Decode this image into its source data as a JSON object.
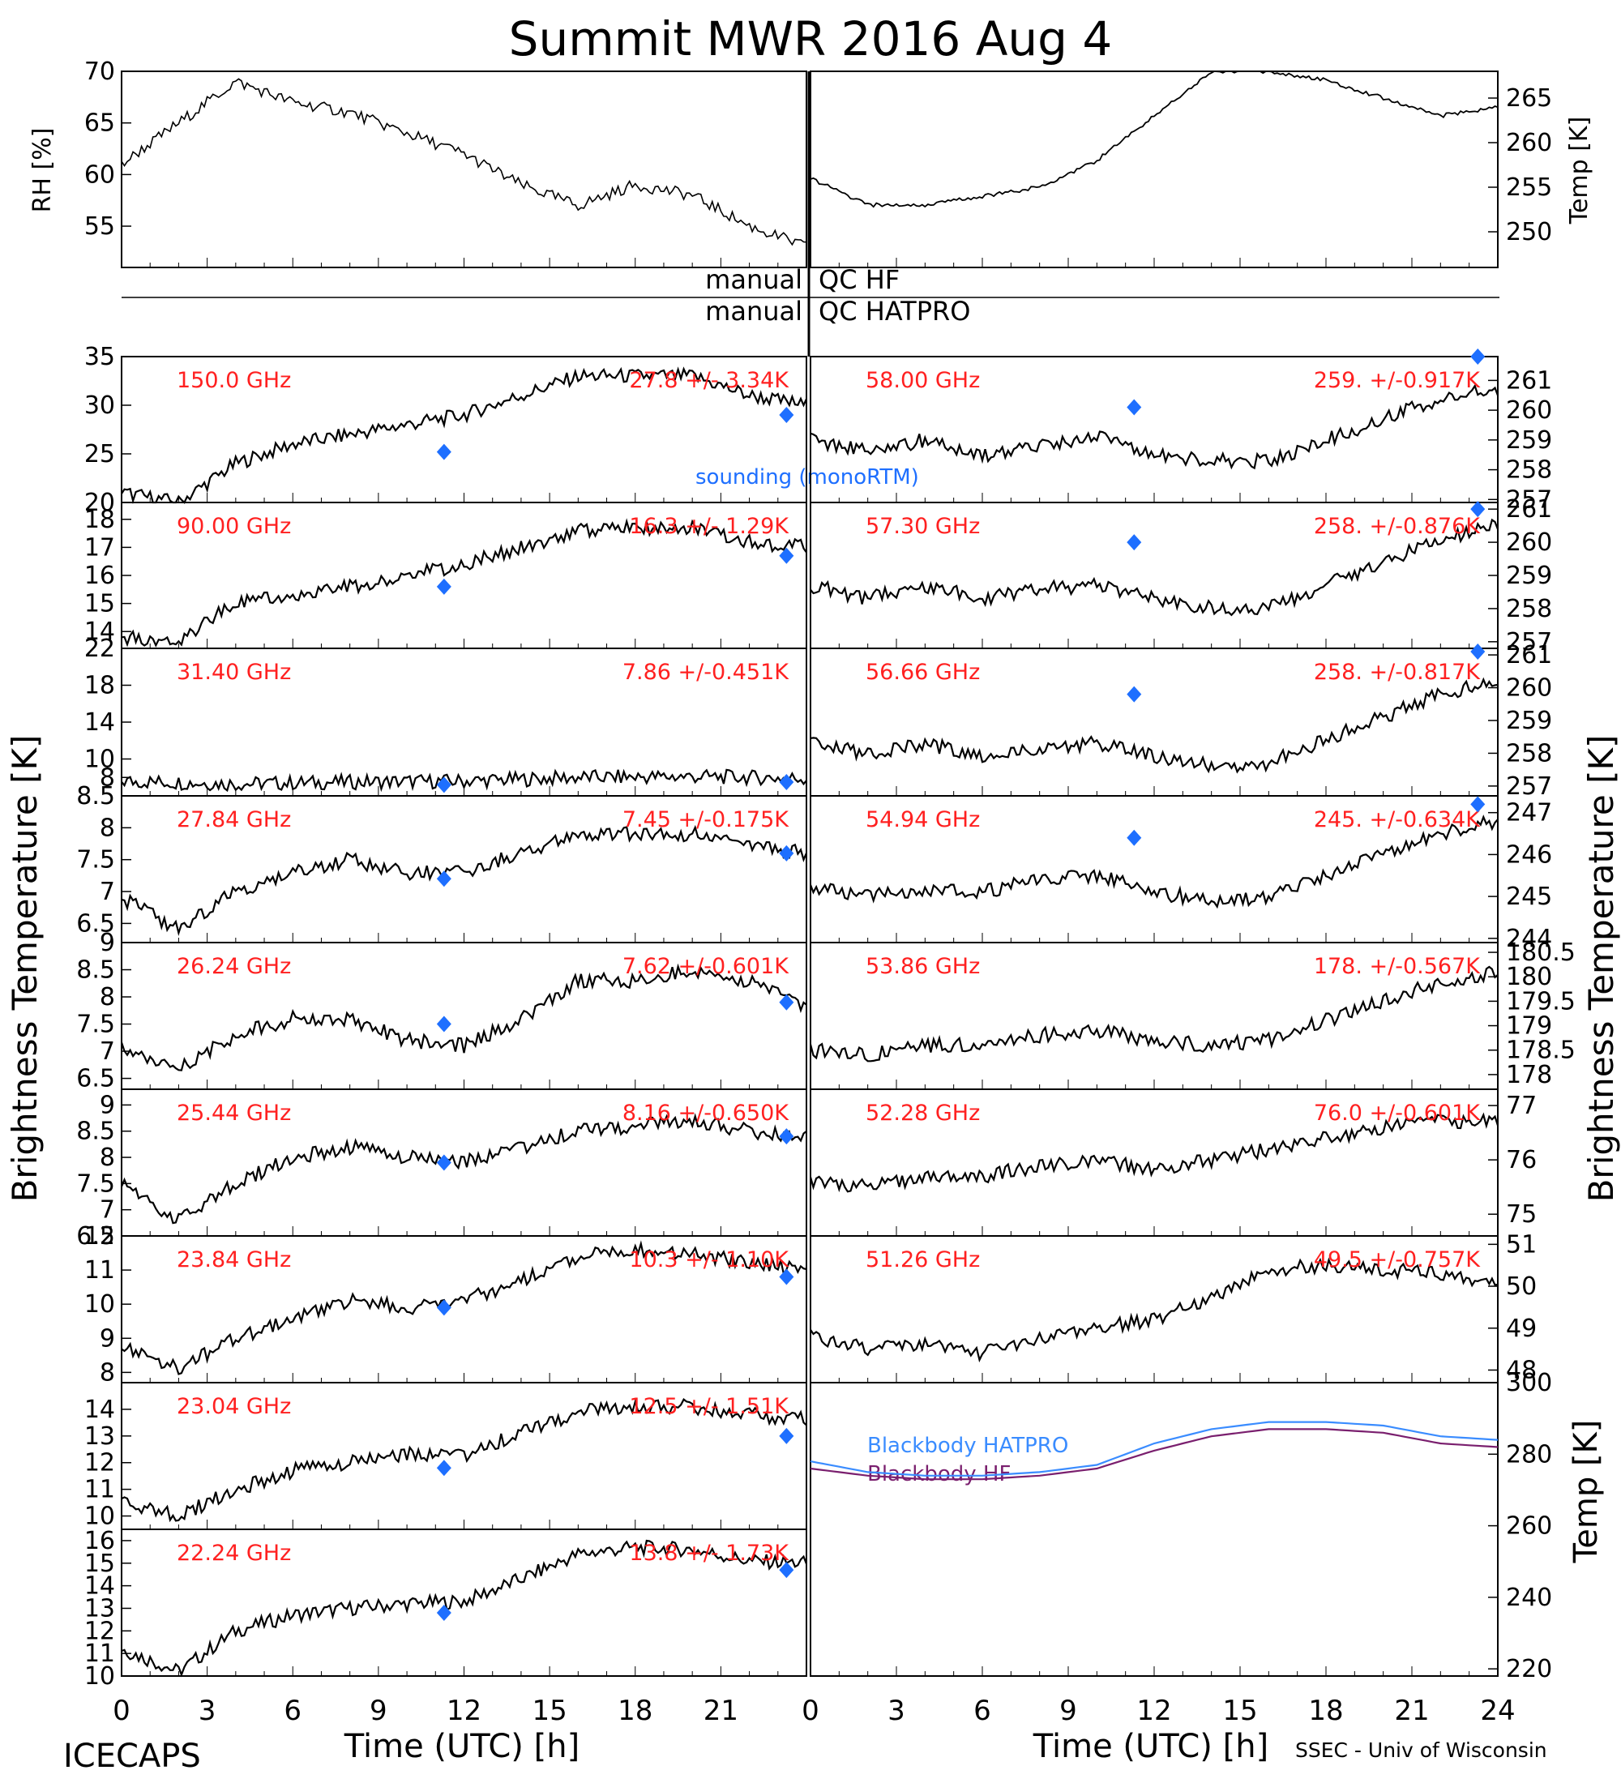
{
  "figure": {
    "title": "Summit MWR 2016 Aug  4",
    "bottom_left_label": "ICECAPS",
    "bottom_right_label": "SSEC - Univ of Wisconsin",
    "xlabel": "Time (UTC) [h]",
    "left_ylabel": "Brightness Temperature [K]",
    "right_ylabel": "Brightness Temperature [K]",
    "qc_hf": "QC HF",
    "qc_hatpro": "QC HATPRO",
    "qc_manual": "manual",
    "sounding_label": "sounding (monoRTM)",
    "colors": {
      "series": "#000000",
      "annotation": "#ff2020",
      "sounding": "#1e6fff",
      "bb_hatpro": "#3a8cff",
      "bb_hf": "#7a1f6e"
    }
  },
  "chart_data": [
    {
      "id": "rh",
      "type": "line",
      "ylabel": "RH [%]",
      "ylim": [
        51,
        70
      ],
      "yticks": [
        55,
        60,
        65,
        70
      ],
      "xlim": [
        0,
        12
      ],
      "x": [
        0,
        1,
        2,
        3,
        4,
        5,
        6,
        7,
        8,
        9,
        10,
        11,
        12
      ],
      "values": [
        61,
        65,
        69,
        67,
        66,
        64,
        62,
        59,
        57,
        59,
        58,
        55,
        53
      ]
    },
    {
      "id": "temp",
      "type": "line",
      "ylabel": "Temp [K]",
      "ylim": [
        246,
        268
      ],
      "yticks": [
        250,
        255,
        260,
        265
      ],
      "xlim": [
        12,
        24
      ],
      "x": [
        12,
        13,
        14,
        15,
        16,
        17,
        18,
        19,
        20,
        21,
        22,
        23,
        24
      ],
      "values": [
        256,
        253,
        253,
        254,
        255,
        258,
        263,
        268,
        268,
        267,
        265,
        263,
        264
      ]
    },
    {
      "id": "150.00",
      "type": "line",
      "label": "150.0 GHz",
      "stat": "27.8 +/- 3.34K",
      "ylim": [
        20,
        35
      ],
      "yticks": [
        20,
        25,
        30,
        35
      ],
      "x": [
        0,
        2,
        4,
        6,
        8,
        10,
        12,
        14,
        16,
        18,
        20,
        22,
        24
      ],
      "values": [
        21,
        20,
        24,
        26,
        27,
        28,
        29,
        31,
        33,
        33,
        33,
        31,
        30
      ],
      "sounding": [
        {
          "x": 11.3,
          "y": 25.2
        },
        {
          "x": 23.3,
          "y": 29
        }
      ]
    },
    {
      "id": "90.00",
      "type": "line",
      "label": "90.00 GHz",
      "stat": "16.3 +/- 1.29K",
      "ylim": [
        13.4,
        18.6
      ],
      "yticks": [
        14,
        15,
        16,
        17,
        18
      ],
      "x": [
        0,
        2,
        4,
        6,
        8,
        10,
        12,
        14,
        16,
        18,
        20,
        22,
        24
      ],
      "values": [
        13.8,
        13.7,
        15.0,
        15.3,
        15.6,
        16.0,
        16.4,
        17.0,
        17.6,
        17.7,
        17.7,
        17.2,
        17.0
      ],
      "sounding": [
        {
          "x": 11.3,
          "y": 15.6
        },
        {
          "x": 23.3,
          "y": 16.7
        }
      ]
    },
    {
      "id": "31.40",
      "type": "line",
      "label": "31.40 GHz",
      "stat": "7.86 +/-0.451K",
      "ylim": [
        6,
        22
      ],
      "yticks": [
        8,
        10,
        14,
        18,
        22
      ],
      "x": [
        0,
        4,
        8,
        12,
        16,
        20,
        24
      ],
      "values": [
        7.6,
        7.3,
        7.5,
        7.6,
        8.0,
        8.1,
        7.9
      ],
      "sounding": [
        {
          "x": 11.3,
          "y": 7.2
        },
        {
          "x": 23.3,
          "y": 7.5
        }
      ]
    },
    {
      "id": "27.84",
      "type": "line",
      "label": "27.84 GHz",
      "stat": "7.45 +/-0.175K",
      "ylim": [
        6.2,
        8.5
      ],
      "yticks": [
        6.5,
        7.0,
        7.5,
        8.0,
        8.5
      ],
      "x": [
        0,
        2,
        4,
        6,
        8,
        10,
        12,
        14,
        16,
        18,
        20,
        22,
        24
      ],
      "values": [
        6.9,
        6.4,
        7.0,
        7.3,
        7.5,
        7.3,
        7.3,
        7.6,
        7.9,
        7.9,
        7.9,
        7.7,
        7.6
      ],
      "sounding": [
        {
          "x": 11.3,
          "y": 7.2
        },
        {
          "x": 23.3,
          "y": 7.6
        }
      ]
    },
    {
      "id": "26.24",
      "type": "line",
      "label": "26.24 GHz",
      "stat": "7.62 +/-0.601K",
      "ylim": [
        6.3,
        9.0
      ],
      "yticks": [
        6.5,
        7.0,
        7.5,
        8.0,
        8.5,
        9.0
      ],
      "x": [
        0,
        2,
        4,
        6,
        8,
        10,
        12,
        14,
        16,
        18,
        20,
        22,
        24
      ],
      "values": [
        7.1,
        6.7,
        7.3,
        7.6,
        7.6,
        7.2,
        7.1,
        7.6,
        8.3,
        8.3,
        8.5,
        8.3,
        7.8
      ],
      "sounding": [
        {
          "x": 11.3,
          "y": 7.5
        },
        {
          "x": 23.3,
          "y": 7.9
        }
      ]
    },
    {
      "id": "25.44",
      "type": "line",
      "label": "25.44 GHz",
      "stat": "8.16 +/-0.650K",
      "ylim": [
        6.5,
        9.3
      ],
      "yticks": [
        6.5,
        7.0,
        7.5,
        8.0,
        8.5,
        9.0
      ],
      "x": [
        0,
        2,
        4,
        6,
        8,
        10,
        12,
        14,
        16,
        18,
        20,
        22,
        24
      ],
      "values": [
        7.5,
        6.8,
        7.5,
        8.0,
        8.2,
        8.0,
        7.9,
        8.2,
        8.5,
        8.6,
        8.7,
        8.5,
        8.4
      ],
      "sounding": [
        {
          "x": 11.3,
          "y": 7.9
        },
        {
          "x": 23.3,
          "y": 8.4
        }
      ]
    },
    {
      "id": "23.84",
      "type": "line",
      "label": "23.84 GHz",
      "stat": "10.3 +/- 1.10K",
      "ylim": [
        7.7,
        12
      ],
      "yticks": [
        8,
        9,
        10,
        11,
        12
      ],
      "x": [
        0,
        2,
        4,
        6,
        8,
        10,
        12,
        14,
        16,
        18,
        20,
        22,
        24
      ],
      "values": [
        8.8,
        8.1,
        9.0,
        9.6,
        10.1,
        9.9,
        10.1,
        10.7,
        11.4,
        11.6,
        11.5,
        11.2,
        11.0
      ],
      "sounding": [
        {
          "x": 11.3,
          "y": 9.9
        },
        {
          "x": 23.3,
          "y": 10.8
        }
      ]
    },
    {
      "id": "23.04",
      "type": "line",
      "label": "23.04 GHz",
      "stat": "12.5 +/- 1.51K",
      "ylim": [
        9.5,
        15
      ],
      "yticks": [
        10,
        11,
        12,
        13,
        14
      ],
      "x": [
        0,
        2,
        4,
        6,
        8,
        10,
        12,
        14,
        16,
        18,
        20,
        22,
        24
      ],
      "values": [
        10.5,
        10.0,
        11.0,
        11.7,
        12.0,
        12.3,
        12.3,
        13.1,
        13.9,
        14.1,
        14.1,
        13.8,
        13.6
      ],
      "sounding": [
        {
          "x": 11.3,
          "y": 11.8
        },
        {
          "x": 23.3,
          "y": 13.0
        }
      ]
    },
    {
      "id": "22.24",
      "type": "line",
      "label": "22.24 GHz",
      "stat": "13.8 +/- 1.73K",
      "ylim": [
        10,
        16.5
      ],
      "yticks": [
        10,
        11,
        12,
        13,
        14,
        15,
        16
      ],
      "x": [
        0,
        2,
        4,
        6,
        8,
        10,
        12,
        14,
        16,
        18,
        20,
        22,
        24
      ],
      "values": [
        11.2,
        10.2,
        12.0,
        12.7,
        13.0,
        13.2,
        13.3,
        14.3,
        15.4,
        15.7,
        15.6,
        15.1,
        15.0
      ],
      "sounding": [
        {
          "x": 11.3,
          "y": 12.8
        },
        {
          "x": 23.3,
          "y": 14.7
        }
      ]
    },
    {
      "id": "58.00",
      "type": "line",
      "label": "58.00 GHz",
      "stat": "259. +/-0.917K",
      "ylim": [
        256.9,
        261.8
      ],
      "yticks": [
        257,
        258,
        259,
        260,
        261
      ],
      "x": [
        0,
        2,
        4,
        6,
        8,
        10,
        12,
        14,
        16,
        18,
        20,
        22,
        24
      ],
      "values": [
        259.0,
        258.6,
        259.0,
        258.5,
        258.8,
        259.1,
        258.5,
        258.3,
        258.3,
        259.0,
        259.7,
        260.4,
        260.7
      ],
      "sounding": [
        {
          "x": 11.3,
          "y": 260.1
        },
        {
          "x": 23.3,
          "y": 261.8
        }
      ]
    },
    {
      "id": "57.30",
      "type": "line",
      "label": "57.30 GHz",
      "stat": "258. +/-0.876K",
      "ylim": [
        256.8,
        261.2
      ],
      "yticks": [
        257,
        258,
        259,
        260,
        261
      ],
      "x": [
        0,
        2,
        4,
        6,
        8,
        10,
        12,
        14,
        16,
        18,
        20,
        22,
        24
      ],
      "values": [
        258.7,
        258.3,
        258.7,
        258.3,
        258.6,
        258.7,
        258.3,
        258.0,
        258.0,
        258.7,
        259.4,
        260.1,
        260.5
      ],
      "sounding": [
        {
          "x": 11.3,
          "y": 260.0
        },
        {
          "x": 23.3,
          "y": 261.0
        }
      ]
    },
    {
      "id": "56.66",
      "type": "line",
      "label": "56.66 GHz",
      "stat": "258. +/-0.817K",
      "ylim": [
        256.7,
        261.2
      ],
      "yticks": [
        257,
        258,
        259,
        260,
        261
      ],
      "x": [
        0,
        2,
        4,
        6,
        8,
        10,
        12,
        14,
        16,
        18,
        20,
        22,
        24
      ],
      "values": [
        258.3,
        258.0,
        258.3,
        257.9,
        258.2,
        258.3,
        257.9,
        257.6,
        257.7,
        258.4,
        259.1,
        259.8,
        260.2
      ],
      "sounding": [
        {
          "x": 11.3,
          "y": 259.8
        },
        {
          "x": 23.3,
          "y": 261.1
        }
      ]
    },
    {
      "id": "54.94",
      "type": "line",
      "label": "54.94 GHz",
      "stat": "245. +/-0.634K",
      "ylim": [
        243.9,
        247.4
      ],
      "yticks": [
        244,
        245,
        246,
        247
      ],
      "x": [
        0,
        2,
        4,
        6,
        8,
        10,
        12,
        14,
        16,
        18,
        20,
        22,
        24
      ],
      "values": [
        245.2,
        245.0,
        245.2,
        245.1,
        245.4,
        245.5,
        245.1,
        244.9,
        245.0,
        245.5,
        246.0,
        246.5,
        246.8
      ],
      "sounding": [
        {
          "x": 11.3,
          "y": 246.4
        },
        {
          "x": 23.3,
          "y": 247.2
        }
      ]
    },
    {
      "id": "53.86",
      "type": "line",
      "label": "53.86 GHz",
      "stat": "178. +/-0.567K",
      "ylim": [
        177.7,
        180.7
      ],
      "yticks": [
        178.0,
        178.5,
        179.0,
        179.5,
        180.0,
        180.5
      ],
      "x": [
        0,
        2,
        4,
        6,
        8,
        10,
        12,
        14,
        16,
        18,
        20,
        22,
        24
      ],
      "values": [
        178.5,
        178.4,
        178.6,
        178.6,
        178.8,
        178.9,
        178.7,
        178.6,
        178.7,
        179.1,
        179.5,
        179.9,
        180.1
      ]
    },
    {
      "id": "52.28",
      "type": "line",
      "label": "52.28 GHz",
      "stat": "76.0 +/-0.601K",
      "ylim": [
        74.6,
        77.3
      ],
      "yticks": [
        75,
        76,
        77
      ],
      "x": [
        0,
        2,
        4,
        6,
        8,
        10,
        12,
        14,
        16,
        18,
        20,
        22,
        24
      ],
      "values": [
        75.6,
        75.5,
        75.7,
        75.7,
        75.9,
        76.0,
        75.8,
        76.0,
        76.2,
        76.4,
        76.6,
        76.7,
        76.7
      ]
    },
    {
      "id": "51.26",
      "type": "line",
      "label": "51.26 GHz",
      "stat": "49.5 +/-0.757K",
      "ylim": [
        47.7,
        51.2
      ],
      "yticks": [
        48,
        49,
        50,
        51
      ],
      "x": [
        0,
        2,
        4,
        6,
        8,
        10,
        12,
        14,
        16,
        18,
        20,
        22,
        24
      ],
      "values": [
        48.8,
        48.5,
        48.6,
        48.4,
        48.8,
        49.0,
        49.2,
        49.7,
        50.4,
        50.5,
        50.4,
        50.3,
        50.1
      ]
    },
    {
      "id": "bb",
      "type": "line",
      "ylabel": "Temp [K]",
      "ylim": [
        218,
        300
      ],
      "yticks": [
        220,
        240,
        260,
        280,
        300
      ],
      "series": [
        {
          "name": "Blackbody HATPRO",
          "x": [
            0,
            2,
            4,
            6,
            8,
            10,
            12,
            14,
            16,
            18,
            20,
            22,
            24
          ],
          "values": [
            278,
            275,
            274,
            274,
            275,
            277,
            283,
            287,
            289,
            289,
            288,
            285,
            284
          ]
        },
        {
          "name": "Blackbody HF",
          "x": [
            0,
            2,
            4,
            6,
            8,
            10,
            12,
            14,
            16,
            18,
            20,
            22,
            24
          ],
          "values": [
            276,
            274,
            273,
            273,
            274,
            276,
            281,
            285,
            287,
            287,
            286,
            283,
            282
          ]
        }
      ]
    }
  ]
}
